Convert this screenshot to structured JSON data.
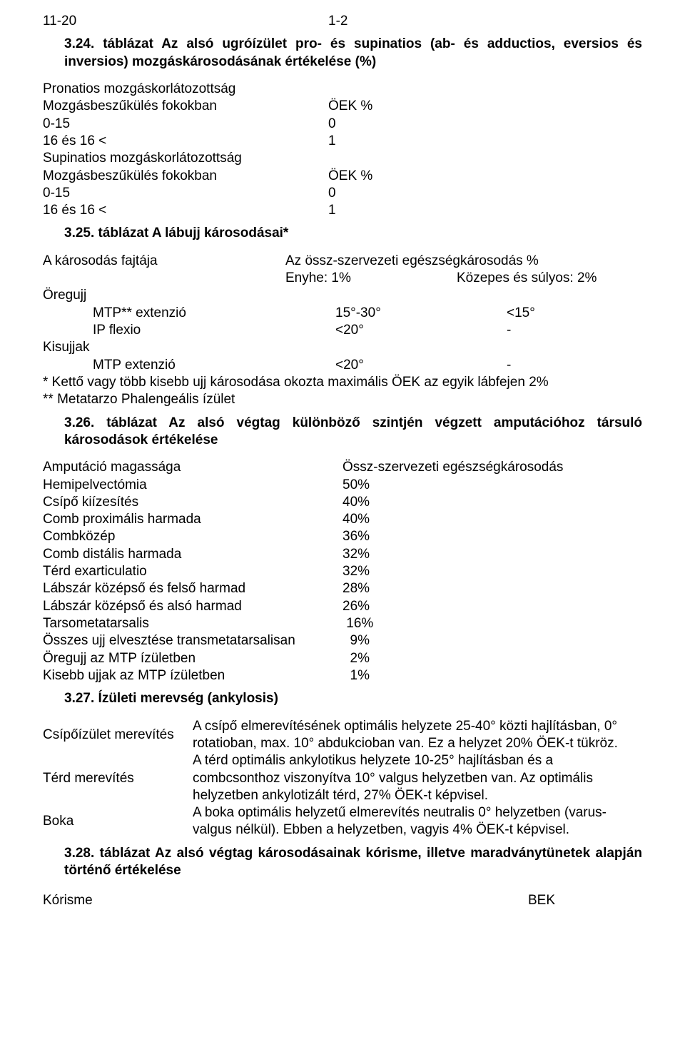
{
  "toprow": {
    "left": "11-20",
    "right": "1-2"
  },
  "h324": "3.24. táblázat Az alsó ugróízület pro- és supinatios (ab- és adductios, eversios és inversios) mozgáskárosodásának értékelése (%)",
  "t324a": {
    "r1": {
      "l": "Pronatios mozgáskorlátozottság",
      "r": ""
    },
    "r2": {
      "l": "Mozgásbeszűkülés fokokban",
      "r": "ÖEK %"
    },
    "r3": {
      "l": "0-15",
      "r": "0"
    },
    "r4": {
      "l": "16 és 16 <",
      "r": "1"
    },
    "r5": {
      "l": "Supinatios mozgáskorlátozottság",
      "r": ""
    },
    "r6": {
      "l": "Mozgásbeszűkülés fokokban",
      "r": "ÖEK %"
    },
    "r7": {
      "l": "0-15",
      "r": "0"
    },
    "r8": {
      "l": "16 és 16 <",
      "r": "1"
    }
  },
  "h325": "3.25. táblázat A lábujj károsodásai*",
  "t325": {
    "hdr1": "A károsodás fajtája",
    "hdr2": "Az össz-szervezeti egészségkárosodás %",
    "sub1": "Enyhe: 1%",
    "sub2": "Közepes és súlyos: 2%",
    "oregujj": "Öregujj",
    "row1": {
      "a": "MTP** extenzió",
      "b": "15°-30°",
      "c": "<15°"
    },
    "row2": {
      "a": "IP flexio",
      "b": "<20°",
      "c": "-"
    },
    "kisujjak": "Kisujjak",
    "row3": {
      "a": "MTP extenzió",
      "b": "<20°",
      "c": "-"
    },
    "note1": "* Kettő vagy több kisebb ujj károsodása okozta maximális ÖEK az egyik lábfejen 2%",
    "note2": "** Metatarzo Phalengeális ízület"
  },
  "h326": "3.26. táblázat Az alsó végtag különböző szintjén végzett amputációhoz társuló károsodások értékelése",
  "t326": {
    "hdr": {
      "l": "Amputáció magassága",
      "r": "Össz-szervezeti egészségkárosodás"
    },
    "rows": [
      {
        "l": "Hemipelvectómia",
        "r": "50%"
      },
      {
        "l": "Csípő kiízesítés",
        "r": "40%"
      },
      {
        "l": "Comb proximális harmada",
        "r": "40%"
      },
      {
        "l": "Combközép",
        "r": "36%"
      },
      {
        "l": "Comb distális harmada",
        "r": "32%"
      },
      {
        "l": "Térd exarticulatio",
        "r": "32%"
      },
      {
        "l": "Lábszár középső és felső harmad",
        "r": "28%"
      },
      {
        "l": "Lábszár középső és alsó harmad",
        "r": "26%"
      },
      {
        "l": "Tarsometatarsalis",
        "r": " 16%"
      },
      {
        "l": "Összes ujj elvesztése transmetatarsalisan",
        "r": "  9%"
      },
      {
        "l": "Öregujj az MTP ízületben",
        "r": "  2%"
      },
      {
        "l": "Kisebb ujjak az MTP ízületben",
        "r": "  1%"
      }
    ]
  },
  "h327": "3.27. Ízületi merevség (ankylosis)",
  "s327": {
    "r1": {
      "name": "Csípőízület merevítés",
      "desc": "A csípő elmerevítésének optimális helyzete 25-40° közti hajlításban, 0° rotatioban, max. 10° abdukcioban van. Ez a helyzet 20% ÖEK-t tükröz."
    },
    "r2": {
      "name": "Térd merevítés",
      "desc": "A térd optimális ankylotikus helyzete 10-25° hajlításban és a combcsonthoz viszonyítva 10° valgus helyzetben van. Az optimális helyzetben ankylotizált térd, 27% ÖEK-t képvisel."
    },
    "r3": {
      "name": "Boka",
      "desc": "A boka optimális helyzetű elmerevítés neutralis 0° helyzetben (varus-valgus nélkül). Ebben a helyzetben, vagyis 4% ÖEK-t képvisel."
    }
  },
  "h328": "3.28. táblázat Az alsó végtag károsodásainak kórisme, illetve maradványtünetek alapján történő értékelése",
  "bottom": {
    "l": "Kórisme",
    "r": "BEK"
  }
}
